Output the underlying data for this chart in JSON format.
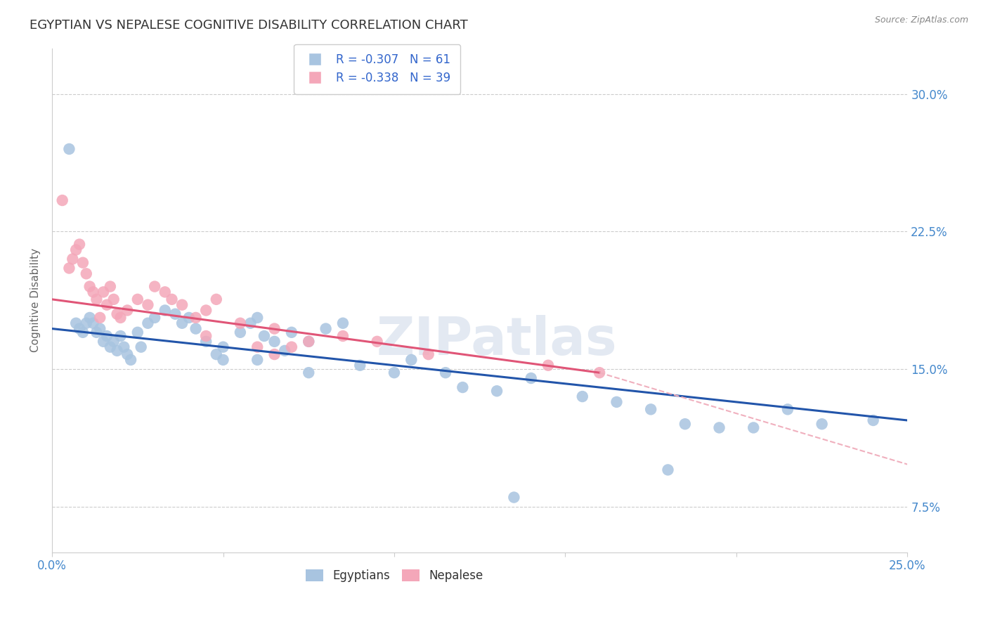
{
  "title": "EGYPTIAN VS NEPALESE COGNITIVE DISABILITY CORRELATION CHART",
  "source": "Source: ZipAtlas.com",
  "ylabel": "Cognitive Disability",
  "y_ticks": [
    0.075,
    0.15,
    0.225,
    0.3
  ],
  "y_tick_labels": [
    "7.5%",
    "15.0%",
    "22.5%",
    "30.0%"
  ],
  "xlim": [
    0.0,
    0.25
  ],
  "ylim": [
    0.05,
    0.325
  ],
  "egyptians_R": -0.307,
  "egyptians_N": 61,
  "nepalese_R": -0.338,
  "nepalese_N": 39,
  "egyptian_color": "#a8c4e0",
  "nepalese_color": "#f4a7b9",
  "trendline_egyptian_color": "#2255aa",
  "trendline_nepalese_color": "#e05577",
  "trendline_nepalese_ext_color": "#f0b0be",
  "watermark_text": "ZIPatlas",
  "eg_trend_x0": 0.0,
  "eg_trend_y0": 0.172,
  "eg_trend_x1": 0.25,
  "eg_trend_y1": 0.122,
  "ne_trend_x0": 0.0,
  "ne_trend_y0": 0.188,
  "ne_trend_x1": 0.16,
  "ne_trend_y1": 0.148,
  "ne_trend_ext_x1": 0.25,
  "ne_trend_ext_y1": 0.098,
  "egyptians_x": [
    0.005,
    0.007,
    0.008,
    0.009,
    0.01,
    0.011,
    0.012,
    0.013,
    0.014,
    0.015,
    0.016,
    0.017,
    0.018,
    0.019,
    0.02,
    0.021,
    0.022,
    0.023,
    0.025,
    0.026,
    0.028,
    0.03,
    0.033,
    0.036,
    0.038,
    0.04,
    0.042,
    0.045,
    0.048,
    0.05,
    0.055,
    0.058,
    0.06,
    0.062,
    0.065,
    0.068,
    0.07,
    0.075,
    0.08,
    0.085,
    0.05,
    0.06,
    0.075,
    0.09,
    0.1,
    0.105,
    0.115,
    0.12,
    0.13,
    0.14,
    0.155,
    0.165,
    0.175,
    0.185,
    0.195,
    0.205,
    0.215,
    0.225,
    0.24,
    0.18,
    0.135
  ],
  "egyptians_y": [
    0.27,
    0.175,
    0.172,
    0.17,
    0.175,
    0.178,
    0.175,
    0.17,
    0.172,
    0.165,
    0.168,
    0.162,
    0.165,
    0.16,
    0.168,
    0.162,
    0.158,
    0.155,
    0.17,
    0.162,
    0.175,
    0.178,
    0.182,
    0.18,
    0.175,
    0.178,
    0.172,
    0.165,
    0.158,
    0.162,
    0.17,
    0.175,
    0.178,
    0.168,
    0.165,
    0.16,
    0.17,
    0.165,
    0.172,
    0.175,
    0.155,
    0.155,
    0.148,
    0.152,
    0.148,
    0.155,
    0.148,
    0.14,
    0.138,
    0.145,
    0.135,
    0.132,
    0.128,
    0.12,
    0.118,
    0.118,
    0.128,
    0.12,
    0.122,
    0.095,
    0.08
  ],
  "nepalese_x": [
    0.003,
    0.005,
    0.006,
    0.007,
    0.008,
    0.009,
    0.01,
    0.011,
    0.012,
    0.013,
    0.014,
    0.015,
    0.016,
    0.017,
    0.018,
    0.019,
    0.02,
    0.022,
    0.025,
    0.028,
    0.03,
    0.033,
    0.035,
    0.038,
    0.042,
    0.045,
    0.048,
    0.055,
    0.06,
    0.065,
    0.07,
    0.075,
    0.045,
    0.065,
    0.085,
    0.095,
    0.11,
    0.145,
    0.16
  ],
  "nepalese_y": [
    0.242,
    0.205,
    0.21,
    0.215,
    0.218,
    0.208,
    0.202,
    0.195,
    0.192,
    0.188,
    0.178,
    0.192,
    0.185,
    0.195,
    0.188,
    0.18,
    0.178,
    0.182,
    0.188,
    0.185,
    0.195,
    0.192,
    0.188,
    0.185,
    0.178,
    0.182,
    0.188,
    0.175,
    0.162,
    0.158,
    0.162,
    0.165,
    0.168,
    0.172,
    0.168,
    0.165,
    0.158,
    0.152,
    0.148
  ]
}
